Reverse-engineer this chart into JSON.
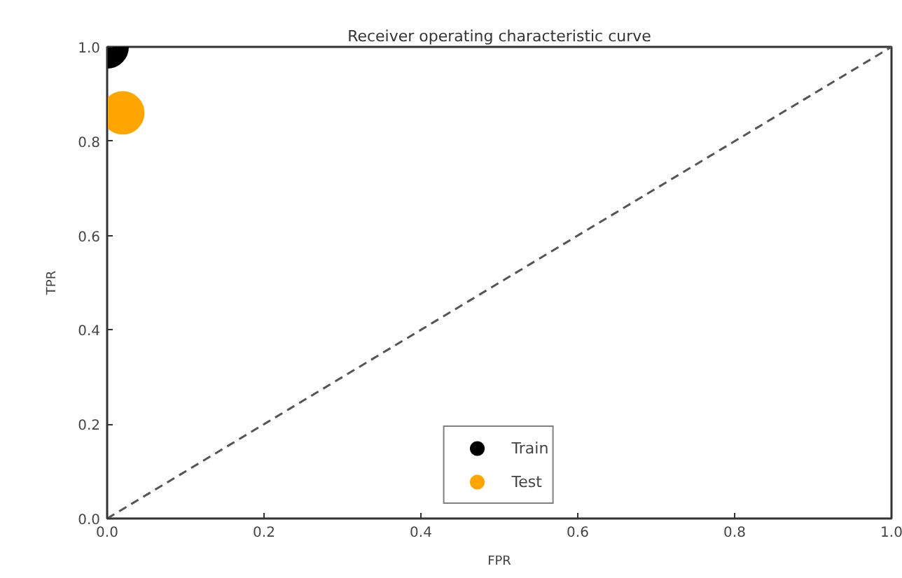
{
  "chart_data": {
    "type": "scatter",
    "title": "Receiver operating characteristic curve",
    "xlabel": "FPR",
    "ylabel": "TPR",
    "xlim": [
      0,
      1
    ],
    "ylim": [
      0,
      1
    ],
    "xticks": [
      {
        "value": 0,
        "label": "0.0"
      },
      0.2,
      0.4,
      0.6,
      0.8,
      {
        "value": 1,
        "label": "1.0"
      }
    ],
    "yticks": [
      {
        "value": 0,
        "label": "0.0"
      },
      0.2,
      0.4,
      0.6,
      0.8,
      {
        "value": 1,
        "label": "1.0"
      }
    ],
    "series": [
      {
        "type": "line",
        "x": [
          0,
          1
        ],
        "values": [
          0,
          1
        ],
        "color": "#555555",
        "line_style": "dashed",
        "marker": "none"
      },
      {
        "name": "Train",
        "color": "#000000",
        "x": [
          0.0
        ],
        "values": [
          1.0
        ],
        "marker": "circle"
      },
      {
        "name": "Test",
        "color": "#ffa500",
        "x": [
          0.02
        ],
        "values": [
          0.86
        ],
        "marker": "circle"
      }
    ],
    "legend": "bottom",
    "grid": false
  }
}
